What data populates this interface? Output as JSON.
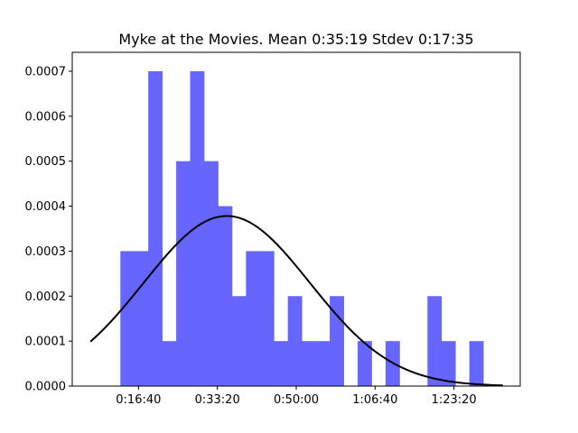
{
  "chart_data": {
    "type": "bar",
    "title": "Myke at the Movies. Mean 0:35:19 Stdev 0:17:35",
    "xlabel": "",
    "ylabel": "",
    "bin_width_seconds": 177,
    "bars": [
      {
        "x_start_seconds": 770,
        "x_end_seconds": 947,
        "value": 0.0003
      },
      {
        "x_start_seconds": 947,
        "x_end_seconds": 1124,
        "value": 0.0003
      },
      {
        "x_start_seconds": 1124,
        "x_end_seconds": 1301,
        "value": 0.0007
      },
      {
        "x_start_seconds": 1301,
        "x_end_seconds": 1478,
        "value": 0.0001
      },
      {
        "x_start_seconds": 1478,
        "x_end_seconds": 1655,
        "value": 0.0005
      },
      {
        "x_start_seconds": 1655,
        "x_end_seconds": 1832,
        "value": 0.0007
      },
      {
        "x_start_seconds": 1832,
        "x_end_seconds": 2009,
        "value": 0.0005
      },
      {
        "x_start_seconds": 2009,
        "x_end_seconds": 2186,
        "value": 0.0004
      },
      {
        "x_start_seconds": 2186,
        "x_end_seconds": 2363,
        "value": 0.0002
      },
      {
        "x_start_seconds": 2363,
        "x_end_seconds": 2540,
        "value": 0.0003
      },
      {
        "x_start_seconds": 2540,
        "x_end_seconds": 2717,
        "value": 0.0003
      },
      {
        "x_start_seconds": 2717,
        "x_end_seconds": 2894,
        "value": 0.0001
      },
      {
        "x_start_seconds": 2894,
        "x_end_seconds": 3071,
        "value": 0.0002
      },
      {
        "x_start_seconds": 3071,
        "x_end_seconds": 3248,
        "value": 0.0001
      },
      {
        "x_start_seconds": 3248,
        "x_end_seconds": 3425,
        "value": 0.0001
      },
      {
        "x_start_seconds": 3425,
        "x_end_seconds": 3602,
        "value": 0.0002
      },
      {
        "x_start_seconds": 3779,
        "x_end_seconds": 3956,
        "value": 0.0001
      },
      {
        "x_start_seconds": 4133,
        "x_end_seconds": 4310,
        "value": 0.0001
      },
      {
        "x_start_seconds": 4664,
        "x_end_seconds": 4841,
        "value": 0.0002
      },
      {
        "x_start_seconds": 4841,
        "x_end_seconds": 5018,
        "value": 0.0001
      },
      {
        "x_start_seconds": 5195,
        "x_end_seconds": 5372,
        "value": 0.0001
      }
    ],
    "normal_curve": {
      "mean_seconds": 2119,
      "stdev_seconds": 1055,
      "x_start_seconds": 390,
      "x_end_seconds": 5620
    },
    "x_ticks": [
      {
        "value": 1000,
        "label": "0:16:40"
      },
      {
        "value": 2000,
        "label": "0:33:20"
      },
      {
        "value": 3000,
        "label": "0:50:00"
      },
      {
        "value": 4000,
        "label": "1:06:40"
      },
      {
        "value": 5000,
        "label": "1:23:20"
      }
    ],
    "y_ticks": [
      {
        "value": 0.0,
        "label": "0.0000"
      },
      {
        "value": 0.0001,
        "label": "0.0001"
      },
      {
        "value": 0.0002,
        "label": "0.0002"
      },
      {
        "value": 0.0003,
        "label": "0.0003"
      },
      {
        "value": 0.0004,
        "label": "0.0004"
      },
      {
        "value": 0.0005,
        "label": "0.0005"
      },
      {
        "value": 0.0006,
        "label": "0.0006"
      },
      {
        "value": 0.0007,
        "label": "0.0007"
      }
    ],
    "xlim": [
      160,
      5840
    ],
    "ylim": [
      0,
      0.000742
    ],
    "grid": false,
    "legend": "none",
    "colors": {
      "bars": "#6666ff",
      "curve": "#000000",
      "axes": "#000000",
      "background": "#ffffff"
    }
  }
}
